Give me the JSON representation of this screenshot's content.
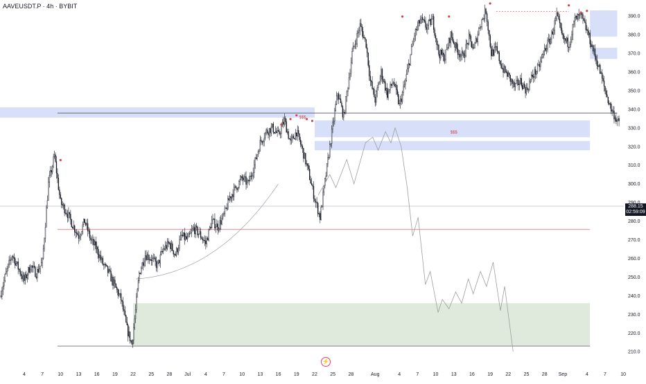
{
  "title": "AAVEUSDT.P · 4h · BYBIT",
  "colors": {
    "candle": "#131722",
    "zone_blue": "#c9d6f5",
    "zone_blue_dark": "#aebff0",
    "zone_green": "#dbe8d9",
    "level_red": "#e06070",
    "projection": "#9e9e9e",
    "marker": "#d0454c",
    "axis_text": "#131722"
  },
  "price_badge": {
    "price": "288.15",
    "countdown": "02:59:09"
  },
  "chart_data": {
    "type": "candlestick",
    "symbol": "AAVEUSDT.P",
    "timeframe": "4h",
    "exchange": "BYBIT",
    "ylim": [
      206,
      396
    ],
    "y_ticks": [
      210,
      220,
      230,
      240,
      250,
      260,
      270,
      280,
      290,
      300,
      310,
      320,
      330,
      340,
      350,
      360,
      370,
      380,
      390
    ],
    "x_ticks": [
      "4",
      "7",
      "10",
      "13",
      "16",
      "19",
      "22",
      "25",
      "28",
      "Jul",
      "4",
      "7",
      "10",
      "13",
      "16",
      "19",
      "22",
      "25",
      "28",
      "Aug",
      "4",
      "7",
      "10",
      "13",
      "16",
      "19",
      "22",
      "25",
      "28",
      "Sep",
      "4",
      "7",
      "10"
    ],
    "x_tick_days": [
      4,
      7,
      10,
      13,
      16,
      19,
      22,
      25,
      28,
      31,
      34,
      37,
      40,
      43,
      46,
      49,
      52,
      55,
      58,
      62,
      66,
      69,
      72,
      75,
      78,
      81,
      84,
      87,
      90,
      93,
      97,
      100,
      103
    ],
    "price_path": [
      [
        0,
        240
      ],
      [
        1,
        252
      ],
      [
        2,
        262
      ],
      [
        3,
        255
      ],
      [
        4,
        248
      ],
      [
        5,
        256
      ],
      [
        6,
        252
      ],
      [
        7,
        258
      ],
      [
        8,
        300
      ],
      [
        9,
        315
      ],
      [
        10,
        290
      ],
      [
        11,
        285
      ],
      [
        12,
        278
      ],
      [
        13,
        272
      ],
      [
        14,
        280
      ],
      [
        15,
        270
      ],
      [
        16,
        265
      ],
      [
        17,
        257
      ],
      [
        18,
        252
      ],
      [
        19,
        245
      ],
      [
        20,
        238
      ],
      [
        21,
        222
      ],
      [
        21.8,
        214
      ],
      [
        22.4,
        232
      ],
      [
        23,
        252
      ],
      [
        24,
        262
      ],
      [
        25,
        260
      ],
      [
        26,
        256
      ],
      [
        27,
        265
      ],
      [
        28,
        268
      ],
      [
        29,
        262
      ],
      [
        30,
        272
      ],
      [
        31,
        270
      ],
      [
        32,
        276
      ],
      [
        33,
        273
      ],
      [
        34,
        268
      ],
      [
        35,
        280
      ],
      [
        36,
        277
      ],
      [
        37,
        283
      ],
      [
        38,
        293
      ],
      [
        39,
        298
      ],
      [
        40,
        303
      ],
      [
        41,
        300
      ],
      [
        42,
        310
      ],
      [
        43,
        322
      ],
      [
        44,
        328
      ],
      [
        45,
        330
      ],
      [
        46,
        326
      ],
      [
        47,
        334
      ],
      [
        48,
        322
      ],
      [
        49,
        328
      ],
      [
        50,
        318
      ],
      [
        51,
        306
      ],
      [
        52,
        292
      ],
      [
        52.9,
        282
      ],
      [
        54.5,
        320
      ],
      [
        55.8,
        349
      ],
      [
        56.8,
        336
      ],
      [
        58.2,
        370
      ],
      [
        59.5,
        385
      ],
      [
        60.5,
        375
      ],
      [
        61.2,
        355
      ],
      [
        62,
        345
      ],
      [
        63,
        360
      ],
      [
        64,
        348
      ],
      [
        65,
        355
      ],
      [
        66,
        342
      ],
      [
        67,
        355
      ],
      [
        68.5,
        380
      ],
      [
        69.5,
        388
      ],
      [
        70.5,
        384
      ],
      [
        71.5,
        388
      ],
      [
        72.5,
        370
      ],
      [
        73.5,
        368
      ],
      [
        74.5,
        380
      ],
      [
        75.5,
        372
      ],
      [
        76.5,
        368
      ],
      [
        77.5,
        378
      ],
      [
        78.3,
        372
      ],
      [
        79.3,
        385
      ],
      [
        80.3,
        393
      ],
      [
        81.2,
        370
      ],
      [
        82,
        372
      ],
      [
        83,
        362
      ],
      [
        84,
        358
      ],
      [
        85,
        352
      ],
      [
        86,
        355
      ],
      [
        87,
        350
      ],
      [
        88,
        358
      ],
      [
        89,
        362
      ],
      [
        90,
        372
      ],
      [
        91,
        378
      ],
      [
        92,
        390
      ],
      [
        93,
        378
      ],
      [
        94,
        375
      ],
      [
        95,
        388
      ],
      [
        96,
        390
      ],
      [
        97,
        382
      ],
      [
        98,
        372
      ],
      [
        99,
        362
      ],
      [
        100,
        350
      ],
      [
        101,
        340
      ],
      [
        102.3,
        332
      ]
    ],
    "projection_path": [
      [
        52.6,
        294
      ],
      [
        54.5,
        305
      ],
      [
        55.5,
        298
      ],
      [
        57.3,
        313
      ],
      [
        58.5,
        300
      ],
      [
        60.4,
        322
      ],
      [
        61.6,
        325
      ],
      [
        62.5,
        318
      ],
      [
        63.7,
        328
      ],
      [
        64.6,
        322
      ],
      [
        65.3,
        330
      ],
      [
        66.3,
        320
      ],
      [
        67.3,
        298
      ],
      [
        68.2,
        272
      ],
      [
        69.1,
        282
      ],
      [
        70.3,
        246
      ],
      [
        71.1,
        253
      ],
      [
        72.4,
        231
      ],
      [
        73.1,
        238
      ],
      [
        74.2,
        233
      ],
      [
        75.3,
        242
      ],
      [
        76.3,
        236
      ],
      [
        77.4,
        249
      ],
      [
        78.2,
        241
      ],
      [
        79.4,
        253
      ],
      [
        80.4,
        245
      ],
      [
        81.5,
        258
      ],
      [
        82.7,
        232
      ],
      [
        83.4,
        245
      ],
      [
        84.8,
        210
      ]
    ],
    "zones": [
      {
        "type": "supply",
        "x_start": 0,
        "x_end": 52,
        "y_low": 335.5,
        "y_high": 341
      },
      {
        "type": "supply",
        "x_start": 52,
        "x_end": 97.5,
        "y_low": 325,
        "y_high": 334
      },
      {
        "type": "supply",
        "x_start": 52,
        "x_end": 97.5,
        "y_low": 318,
        "y_high": 323
      },
      {
        "type": "supply",
        "x_start": 97.5,
        "x_end": 102,
        "y_low": 379,
        "y_high": 393
      },
      {
        "type": "supply",
        "x_start": 97.5,
        "x_end": 102,
        "y_low": 367,
        "y_high": 373
      },
      {
        "type": "demand",
        "x_start": 22,
        "x_end": 97.5,
        "y_low": 213,
        "y_high": 236
      }
    ],
    "levels": [
      {
        "type": "red",
        "price": 275.5,
        "x_start": 9.5,
        "x_end": 97.5
      },
      {
        "type": "black",
        "price": 213,
        "x_start": 9.5,
        "x_end": 97.5
      },
      {
        "type": "black",
        "price": 338,
        "x_start": 9.5,
        "x_end": 102
      },
      {
        "type": "grey",
        "price": 288,
        "x_start": 0,
        "x_end": 105
      }
    ],
    "annotations": [
      {
        "text": "$$$",
        "day": 50,
        "price": 335
      },
      {
        "text": "$$$",
        "day": 75,
        "price": 327
      }
    ]
  }
}
